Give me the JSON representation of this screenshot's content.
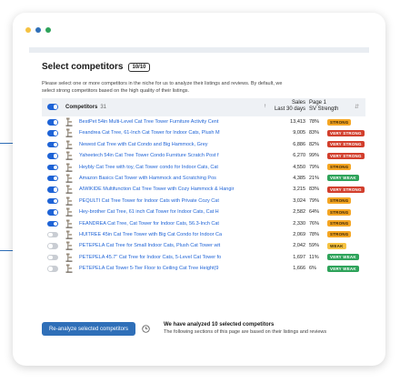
{
  "window": {
    "dot_colors": [
      "#f5c242",
      "#2f6fb8",
      "#2ea35a"
    ]
  },
  "panel": {
    "title": "Select competitors",
    "selected_badge": "10/10",
    "description": "Please select one or more competitors in the niche for us to analyze their listings and reviews. By default, we select strong competitors based on the high quality of their listings."
  },
  "table": {
    "header": {
      "competitors_label": "Competitors",
      "competitors_count": "31",
      "sales_label": "Sales",
      "sales_sub": "Last 30 days",
      "sv_label": "Page 1",
      "sv_sub": "SV Strength",
      "sort_icon": "↑",
      "sv_sort_icon": "⇵"
    },
    "rows": [
      {
        "name": "BestPet 54in Multi-Level Cat Tree Tower Furniture Activity Cent",
        "sales": "13,413",
        "pct": "78%",
        "strength": "STRONG",
        "on": true
      },
      {
        "name": "Feandrea Cat Tree, 61-Inch Cat Tower for Indoor Cats, Plush M",
        "sales": "9,005",
        "pct": "83%",
        "strength": "VERY STRONG",
        "on": true
      },
      {
        "name": "Newest Cat Tree with Cat Condo and Big Hammock, Grey",
        "sales": "6,886",
        "pct": "82%",
        "strength": "VERY STRONG",
        "on": true
      },
      {
        "name": "Yaheetech 54in Cat Tree Tower Condo Furniture Scratch Post f",
        "sales": "6,270",
        "pct": "99%",
        "strength": "VERY STRONG",
        "on": true
      },
      {
        "name": "Heybly Cat Tree with toy, Cat Tower condo for Indoor Cats, Cat",
        "sales": "4,550",
        "pct": "79%",
        "strength": "STRONG",
        "on": true
      },
      {
        "name": "Amazon Basics Cat Tower with Hammock and Scratching Pos",
        "sales": "4,385",
        "pct": "21%",
        "strength": "VERY WEAK",
        "on": true
      },
      {
        "name": "AIWIKIDE Multifunction Cat Tree Tower with Cozy Hammock & Hangir",
        "sales": "3,215",
        "pct": "83%",
        "strength": "VERY STRONG",
        "on": true
      },
      {
        "name": "PEQULTI Cat Tree Tower for Indoor Cats with Private Cozy Cat",
        "sales": "3,024",
        "pct": "79%",
        "strength": "STRONG",
        "on": true
      },
      {
        "name": "Hey-brother Cat Tree, 61 inch Cat Tower for Indoor Cats, Cat H",
        "sales": "2,582",
        "pct": "64%",
        "strength": "STRONG",
        "on": true
      },
      {
        "name": "FEANDREA Cat Tree, Cat Tower for Indoor Cats, 56.3-Inch Cat",
        "sales": "2,330",
        "pct": "76%",
        "strength": "STRONG",
        "on": true
      },
      {
        "name": "HUITREE 45in Cat Tree Tower with Big Cat Condo for Indoor Ca",
        "sales": "2,069",
        "pct": "78%",
        "strength": "STRONG",
        "on": false
      },
      {
        "name": "PETEPELA Cat Tree for Small Indoor Cats, Plush Cat Tower wit",
        "sales": "2,042",
        "pct": "59%",
        "strength": "WEAK",
        "on": false
      },
      {
        "name": "PETEPELA 45.7\" Cat Tree for Indoor Cats, 5-Level Cat Tower fo",
        "sales": "1,697",
        "pct": "11%",
        "strength": "VERY WEAK",
        "on": false
      },
      {
        "name": "PETEPELA Cat Tower 5-Tier Floor to Ceiling Cat Tree Height(9",
        "sales": "1,666",
        "pct": "6%",
        "strength": "VERY WEAK",
        "on": false
      }
    ]
  },
  "footer": {
    "button_label": "Re-analyze selected competitors",
    "status_title": "We have analyzed 10 selected competitors",
    "status_sub": "The following sections of this page are based on their listings and reviews"
  },
  "colors": {
    "accent": "#1e63d6",
    "button": "#2f6fb8",
    "strong": "#f5a623",
    "very_strong": "#d23f2d",
    "very_weak": "#2ea35a",
    "weak": "#f5c242"
  }
}
